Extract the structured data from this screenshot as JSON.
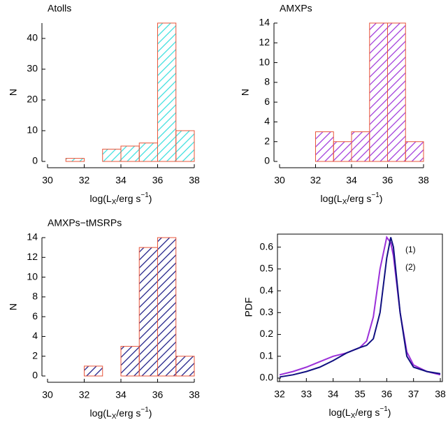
{
  "chart_data": [
    {
      "type": "histogram",
      "title": "Atolls",
      "title_color": "#33dddd",
      "color": "#33dddd",
      "edgecolor": "#e8553a",
      "bins": [
        31,
        32,
        33,
        34,
        35,
        36,
        37,
        38
      ],
      "values": [
        1,
        0,
        4,
        5,
        6,
        45,
        10
      ],
      "xlim": [
        30,
        38
      ],
      "xticks": [
        30,
        32,
        34,
        36,
        38
      ],
      "ylim": [
        0,
        45
      ],
      "yticks": [
        0,
        10,
        20,
        30,
        40
      ],
      "xlabel": [
        "log(L",
        "X",
        "/erg s",
        "−1",
        ")"
      ],
      "ylabel": "N"
    },
    {
      "type": "histogram",
      "title": "AMXPs",
      "title_color": "#9b30d9",
      "color": "#9b30d9",
      "edgecolor": "#e8553a",
      "bins": [
        32,
        33,
        34,
        35,
        36,
        37,
        38
      ],
      "values": [
        3,
        2,
        3,
        14,
        14,
        2
      ],
      "xlim": [
        30,
        38
      ],
      "xticks": [
        30,
        32,
        34,
        36,
        38
      ],
      "ylim": [
        0,
        14
      ],
      "yticks": [
        0,
        2,
        4,
        6,
        8,
        10,
        12,
        14
      ],
      "xlabel": [
        "log(L",
        "X",
        "/erg s",
        "−1",
        ")"
      ],
      "ylabel": "N"
    },
    {
      "type": "histogram",
      "title": "AMXPs−tMSRPs",
      "title_color": "#101080",
      "color": "#101080",
      "edgecolor": "#e8553a",
      "bins": [
        32,
        33,
        34,
        35,
        36,
        37,
        38
      ],
      "values": [
        1,
        0,
        3,
        13,
        14,
        2
      ],
      "xlim": [
        30,
        38
      ],
      "xticks": [
        30,
        32,
        34,
        36,
        38
      ],
      "ylim": [
        0,
        14
      ],
      "yticks": [
        0,
        2,
        4,
        6,
        8,
        10,
        12,
        14
      ],
      "xlabel": [
        "log(L",
        "X",
        "/erg s",
        "−1",
        ")"
      ],
      "ylabel": "N"
    },
    {
      "type": "line",
      "x": [
        32,
        32.5,
        33,
        33.5,
        34,
        34.5,
        35,
        35.25,
        35.5,
        35.75,
        36,
        36.15,
        36.25,
        36.5,
        36.75,
        37,
        37.5,
        38
      ],
      "series": [
        {
          "name": "(1)",
          "color": "#9b30d9",
          "values": [
            0.015,
            0.03,
            0.05,
            0.075,
            0.1,
            0.115,
            0.14,
            0.17,
            0.28,
            0.5,
            0.645,
            0.62,
            0.56,
            0.3,
            0.12,
            0.06,
            0.03,
            0.015
          ]
        },
        {
          "name": "(2)",
          "color": "#101080",
          "values": [
            0.005,
            0.015,
            0.03,
            0.05,
            0.08,
            0.115,
            0.14,
            0.15,
            0.18,
            0.3,
            0.55,
            0.645,
            0.6,
            0.3,
            0.1,
            0.05,
            0.03,
            0.02
          ]
        }
      ],
      "xlim": [
        32,
        38
      ],
      "xticks": [
        32,
        33,
        34,
        35,
        36,
        37,
        38
      ],
      "ylim": [
        0,
        0.65
      ],
      "yticks": [
        {
          "value": 0,
          "label": "0.0"
        },
        0.1,
        0.2,
        0.3,
        0.4,
        0.5,
        0.6
      ],
      "xlabel": [
        "log(L",
        "X",
        "/erg s",
        "−1",
        ")"
      ],
      "ylabel": "PDF"
    }
  ]
}
